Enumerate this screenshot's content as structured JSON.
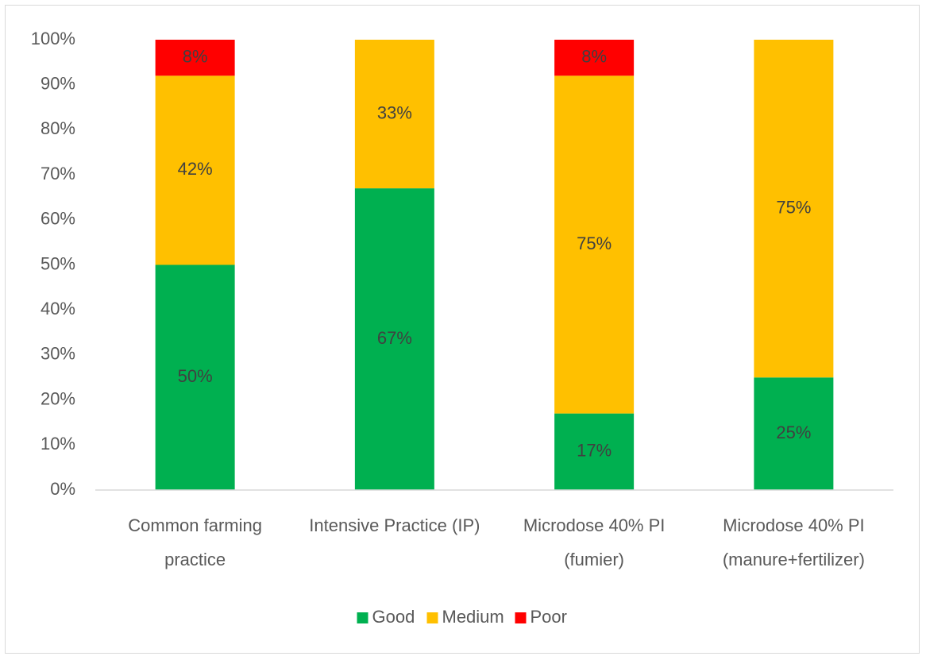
{
  "chart_data": {
    "type": "stacked_bar",
    "categories": [
      "Common farming practice",
      "Intensive Practice (IP)",
      "Microdose 40% PI (fumier)",
      "Microdose 40% PI (manure+fertilizer)"
    ],
    "series": [
      {
        "name": "Good",
        "color": "#00b050",
        "values": [
          50,
          67,
          17,
          25
        ],
        "value_labels": [
          "50%",
          "67%",
          "17%",
          "25%"
        ]
      },
      {
        "name": "Medium",
        "color": "#ffc000",
        "values": [
          42,
          33,
          75,
          75
        ],
        "value_labels": [
          "42%",
          "33%",
          "75%",
          "75%"
        ]
      },
      {
        "name": "Poor",
        "color": "#ff0000",
        "values": [
          8,
          null,
          8,
          null
        ],
        "value_labels": [
          "8%",
          null,
          "8%",
          null
        ]
      }
    ],
    "ylim": [
      0,
      100
    ],
    "yticks": [
      {
        "value": 0,
        "label": "0%"
      },
      {
        "value": 10,
        "label": "10%"
      },
      {
        "value": 20,
        "label": "20%"
      },
      {
        "value": 30,
        "label": "30%"
      },
      {
        "value": 40,
        "label": "40%"
      },
      {
        "value": 50,
        "label": "50%"
      },
      {
        "value": 60,
        "label": "60%"
      },
      {
        "value": 70,
        "label": "70%"
      },
      {
        "value": 80,
        "label": "80%"
      },
      {
        "value": 90,
        "label": "90%"
      },
      {
        "value": 100,
        "label": "100%"
      }
    ],
    "grid": false,
    "legend": "bottom"
  }
}
